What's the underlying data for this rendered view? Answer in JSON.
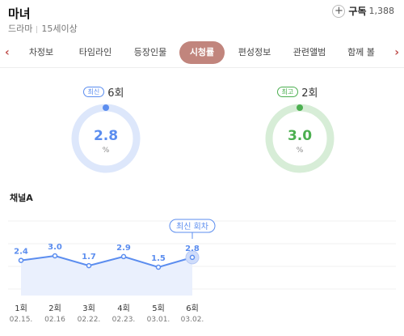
{
  "header": {
    "title": "마녀",
    "genre": "드라마",
    "rating": "15세이상",
    "subscribe_label": "구독",
    "subscribe_count": "1,388"
  },
  "tabs": [
    "차정보",
    "타임라인",
    "등장인물",
    "시청률",
    "편성정보",
    "관련앨범",
    "함께 볼"
  ],
  "active_tab": "시청률",
  "latest": {
    "badge": "최신",
    "episode": "6회",
    "value": "2.8",
    "unit": "%"
  },
  "best": {
    "badge": "최고",
    "episode": "2회",
    "value": "3.0",
    "unit": "%"
  },
  "colors": {
    "blue": "#5b8def",
    "green": "#4caf50",
    "tab_active": "#c1857d",
    "blue_ring": "#dde7fb",
    "green_ring": "#d7edd7"
  },
  "channel": "채널A",
  "tooltip": "최신 회차",
  "chart_data": {
    "type": "line",
    "categories": [
      "1회",
      "2회",
      "3회",
      "4회",
      "5회",
      "6회"
    ],
    "dates": [
      "02.15.",
      "02.16",
      "02.22.",
      "02.23.",
      "03.01.",
      "03.02."
    ],
    "series": [
      {
        "values": [
          2.4,
          3.0,
          1.7,
          2.9,
          1.5,
          2.8
        ]
      }
    ],
    "labels": [
      "2.4",
      "3.0",
      "1.7",
      "2.9",
      "1.5",
      "2.8"
    ],
    "highlight_index": 5
  }
}
